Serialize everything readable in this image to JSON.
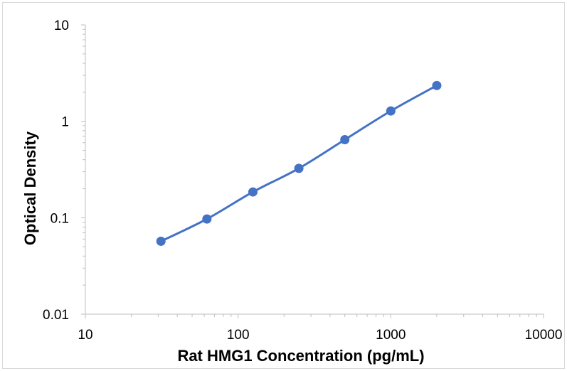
{
  "chart_data": {
    "type": "scatter",
    "title": "",
    "xlabel": "Rat HMG1 Concentration (pg/mL)",
    "ylabel": "Optical Density",
    "x_scale": "log",
    "y_scale": "log",
    "xlim": [
      10,
      10000
    ],
    "ylim": [
      0.01,
      10
    ],
    "x_tick_labels": [
      "10",
      "100",
      "1000",
      "10000"
    ],
    "y_tick_labels": [
      "0.01",
      "0.1",
      "1",
      "10"
    ],
    "grid": false,
    "legend": "none",
    "series": [
      {
        "x": [
          31.25,
          62.5,
          125,
          250,
          500,
          1000,
          2000
        ],
        "y": [
          0.057,
          0.097,
          0.185,
          0.325,
          0.645,
          1.28,
          2.35
        ],
        "color": "#4472c4",
        "line": "smooth",
        "markers": "circle"
      }
    ]
  }
}
